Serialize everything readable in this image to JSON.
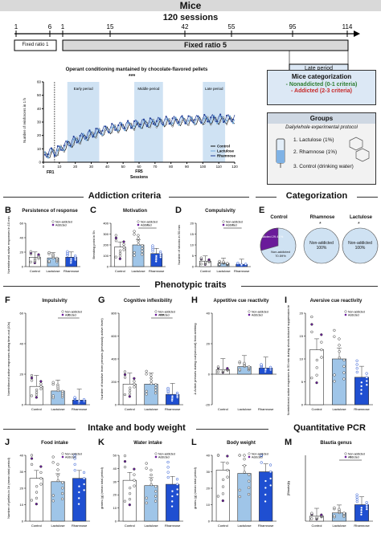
{
  "header": {
    "mice_title": "Mice",
    "sessions_title": "120 sessions"
  },
  "timeline": {
    "ticks": [
      "1",
      "6",
      "1",
      "15",
      "42",
      "55",
      "95",
      "114"
    ],
    "fixed_ratio_1": "Fixed ratio 1",
    "fixed_ratio_5": "Fixed ratio 5",
    "late_period": "Late period"
  },
  "operant": {
    "title": "Operant conditioning mantained by chocolate-flavored pellets",
    "stars": "***",
    "ylabel": "Number of reinforcers in 1 h",
    "xlabel": "Sessions",
    "early": "Early period",
    "middle": "Middle period",
    "late": "Late period",
    "fr1": "FR1",
    "fr5": "FR5",
    "yticks": [
      "0",
      "10",
      "20",
      "30",
      "40",
      "50",
      "60"
    ],
    "xticks": [
      "0",
      "10",
      "20",
      "30",
      "40",
      "50",
      "60",
      "70",
      "80",
      "90",
      "100",
      "110",
      "120"
    ],
    "legend": [
      {
        "name": "Control",
        "color": "#111111"
      },
      {
        "name": "Lactulose",
        "color": "#6fa8dc"
      },
      {
        "name": "Rhamnose",
        "color": "#1f3a93"
      }
    ]
  },
  "categorization_box": {
    "title": "Mice categorization",
    "nonaddicted": "- Nonaddicted (0-1 criteria)",
    "addicted": "- Addicted (2-3 criteria)"
  },
  "groups_box": {
    "title": "Groups",
    "subtitle": "Daily/whole experimental protocol",
    "items": [
      "1. Lactulose (1%)",
      "2. Rhamnose (1%)",
      "3. Control (drinking water)"
    ]
  },
  "sections": {
    "addiction": "Addiction criteria",
    "categorization": "Categorization",
    "phenotypic": "Phenotypic traits",
    "intake": "Intake and body weight",
    "pcr": "Quantitative PCR"
  },
  "legend_small": {
    "non": "Non-addicted",
    "add": "Addicted"
  },
  "groups": [
    "Control",
    "Lactulose",
    "Rhamnose"
  ],
  "panels": {
    "B": {
      "letter": "B",
      "title": "Persistence of response",
      "ylabel": "Noreinforced active responses in 10 min",
      "yticks": [
        "0",
        "20",
        "40",
        "60"
      ]
    },
    "C": {
      "letter": "C",
      "title": "Motivation",
      "ylabel": "Breaking point in 5h",
      "yticks": [
        "0",
        "100",
        "200",
        "300",
        "400"
      ],
      "sig": "*"
    },
    "D": {
      "letter": "D",
      "title": "Compulsivity",
      "ylabel": "Number of shocks in 50 min",
      "yticks": [
        "0",
        "5",
        "10",
        "15",
        "20"
      ],
      "sig": "*"
    },
    "E": {
      "letter": "E",
      "control": "Control",
      "rhamnose": "Rhamnose",
      "lactulose": "Lactulose",
      "c_add": "Addicted 29.41%",
      "c_non": "Non-addicted 70.59%",
      "r_non": "Non-addicted 100%",
      "l_non": "Non-addicted 100%",
      "sig": "*"
    },
    "F": {
      "letter": "F",
      "title": "Impulsivity",
      "ylabel": "Noreinforced active responses during time-out (10s)",
      "yticks": [
        "0",
        "20",
        "40",
        "60"
      ],
      "sig": "*"
    },
    "G": {
      "letter": "G",
      "title": "Cognitive inflexibility",
      "ylabel": "Number of inactive lever presses (previously active lever)",
      "yticks": [
        "0",
        "200",
        "400",
        "600",
        "800"
      ],
      "sig": "***"
    },
    "H": {
      "letter": "H",
      "title": "Appetitive cue reactivity",
      "ylabel": "Δ Active presses during cue(second) food-seeking",
      "yticks": [
        "-20",
        "0",
        "20",
        "40"
      ]
    },
    "I": {
      "letter": "I",
      "title": "Aversive cue reactivity",
      "ylabel": "Noreinforced active responses in 50 min during shock-induced suppression test",
      "yticks": [
        "0",
        "5",
        "10",
        "15",
        "20"
      ]
    },
    "J": {
      "letter": "J",
      "title": "Food intake",
      "ylabel": "Number of pellets in 1h (mean total period)",
      "yticks": [
        "0",
        "10",
        "20",
        "30",
        "40"
      ]
    },
    "K": {
      "letter": "K",
      "title": "Water intake",
      "ylabel": "grams (g) (mean total period)",
      "yticks": [
        "0",
        "10",
        "20",
        "30",
        "40",
        "50"
      ]
    },
    "L": {
      "letter": "L",
      "title": "Body weight",
      "ylabel": "grams (g) (mean total period)",
      "yticks": [
        "0",
        "10",
        "20",
        "30",
        "40"
      ]
    },
    "M": {
      "letter": "M",
      "title": "Blautia genus",
      "ylabel": "[Blautia]/g",
      "sig": "*"
    }
  },
  "chart_data": [
    {
      "type": "line",
      "title": "Operant conditioning mantained by chocolate-flavored pellets",
      "xlabel": "Sessions",
      "ylabel": "Number of reinforcers in 1 h",
      "xlim": [
        0,
        120
      ],
      "ylim": [
        0,
        60
      ],
      "series": [
        {
          "name": "Control",
          "values": "rising ~5 to ~33"
        },
        {
          "name": "Lactulose",
          "values": "rising ~5 to ~35"
        },
        {
          "name": "Rhamnose",
          "values": "rising ~5 to ~33"
        }
      ]
    },
    {
      "type": "bar",
      "panel": "B",
      "categories": [
        "Control",
        "Lactulose",
        "Rhamnose"
      ],
      "values": [
        13,
        12,
        13
      ],
      "ylim": [
        0,
        60
      ]
    },
    {
      "type": "bar",
      "panel": "C",
      "categories": [
        "Control",
        "Lactulose",
        "Rhamnose"
      ],
      "values": [
        180,
        200,
        120
      ],
      "ylim": [
        0,
        400
      ]
    },
    {
      "type": "bar",
      "panel": "D",
      "categories": [
        "Control",
        "Lactulose",
        "Rhamnose"
      ],
      "values": [
        2.5,
        1.5,
        1
      ],
      "ylim": [
        0,
        20
      ]
    },
    {
      "type": "pie",
      "panel": "E",
      "categories": [
        "Addicted",
        "Non-addicted"
      ],
      "values": [
        29.41,
        70.59
      ]
    },
    {
      "type": "bar",
      "panel": "F",
      "categories": [
        "Control",
        "Lactulose",
        "Rhamnose"
      ],
      "values": [
        12,
        9,
        3
      ],
      "ylim": [
        0,
        60
      ]
    },
    {
      "type": "bar",
      "panel": "G",
      "categories": [
        "Control",
        "Lactulose",
        "Rhamnose"
      ],
      "values": [
        180,
        180,
        90
      ],
      "ylim": [
        0,
        800
      ]
    },
    {
      "type": "bar",
      "panel": "H",
      "categories": [
        "Control",
        "Lactulose",
        "Rhamnose"
      ],
      "values": [
        3,
        5,
        4
      ],
      "ylim": [
        -20,
        40
      ]
    },
    {
      "type": "bar",
      "panel": "I",
      "categories": [
        "Control",
        "Lactulose",
        "Rhamnose"
      ],
      "values": [
        12,
        10,
        6
      ],
      "ylim": [
        0,
        20
      ]
    },
    {
      "type": "bar",
      "panel": "J",
      "categories": [
        "Control",
        "Lactulose",
        "Rhamnose"
      ],
      "values": [
        26,
        24,
        26
      ],
      "ylim": [
        0,
        40
      ]
    },
    {
      "type": "bar",
      "panel": "K",
      "categories": [
        "Control",
        "Lactulose",
        "Rhamnose"
      ],
      "values": [
        31,
        27,
        28
      ],
      "ylim": [
        0,
        50
      ]
    },
    {
      "type": "bar",
      "panel": "L",
      "categories": [
        "Control",
        "Lactulose",
        "Rhamnose"
      ],
      "values": [
        31,
        29,
        30
      ],
      "ylim": [
        0,
        40
      ]
    },
    {
      "type": "bar",
      "panel": "M",
      "categories": [
        "Control",
        "Lactulose",
        "Rhamnose"
      ],
      "values": [
        0.3,
        0.5,
        1.0
      ]
    }
  ],
  "colors": {
    "control": "#ffffff",
    "lactulose": "#9fc5e8",
    "rhamnose": "#1f4fd1",
    "addicted": "#6a1b9a",
    "nonaddicted": "#cfe2f3",
    "band": "#d9d9d9",
    "shade": "#cfe2f3"
  }
}
